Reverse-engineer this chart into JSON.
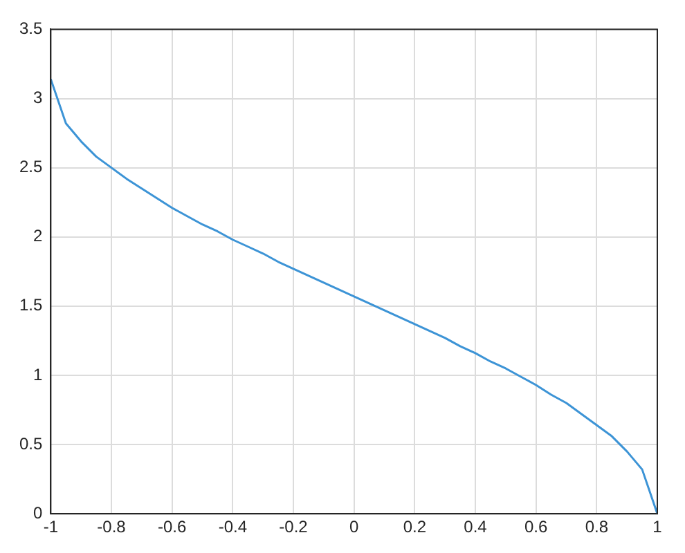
{
  "chart_data": {
    "type": "line",
    "x": [
      -1,
      -0.95,
      -0.9,
      -0.85,
      -0.8,
      -0.75,
      -0.7,
      -0.65,
      -0.6,
      -0.55,
      -0.5,
      -0.45,
      -0.4,
      -0.35,
      -0.3,
      -0.25,
      -0.2,
      -0.15,
      -0.1,
      -0.05,
      0,
      0.05,
      0.1,
      0.15,
      0.2,
      0.25,
      0.3,
      0.35,
      0.4,
      0.45,
      0.5,
      0.55,
      0.6,
      0.65,
      0.7,
      0.75,
      0.8,
      0.85,
      0.9,
      0.95,
      1
    ],
    "series": [
      {
        "color": "#3d94d6",
        "values": [
          3.14,
          2.82,
          2.69,
          2.58,
          2.5,
          2.42,
          2.35,
          2.28,
          2.21,
          2.15,
          2.09,
          2.04,
          1.98,
          1.93,
          1.88,
          1.82,
          1.77,
          1.72,
          1.67,
          1.62,
          1.57,
          1.52,
          1.47,
          1.42,
          1.37,
          1.32,
          1.27,
          1.21,
          1.16,
          1.1,
          1.05,
          0.99,
          0.93,
          0.86,
          0.8,
          0.72,
          0.64,
          0.56,
          0.45,
          0.32,
          0
        ]
      }
    ],
    "xlim": [
      -1,
      1
    ],
    "xticks": [
      -1,
      -0.8,
      -0.6,
      -0.4,
      -0.2,
      0,
      0.2,
      0.4,
      0.6,
      0.8,
      1
    ],
    "ylim": [
      0,
      3.5
    ],
    "yticks": [
      0,
      0.5,
      1,
      1.5,
      2,
      2.5,
      3,
      3.5
    ],
    "grid": true,
    "legend": false,
    "marker": "none",
    "line_style": "solid"
  }
}
